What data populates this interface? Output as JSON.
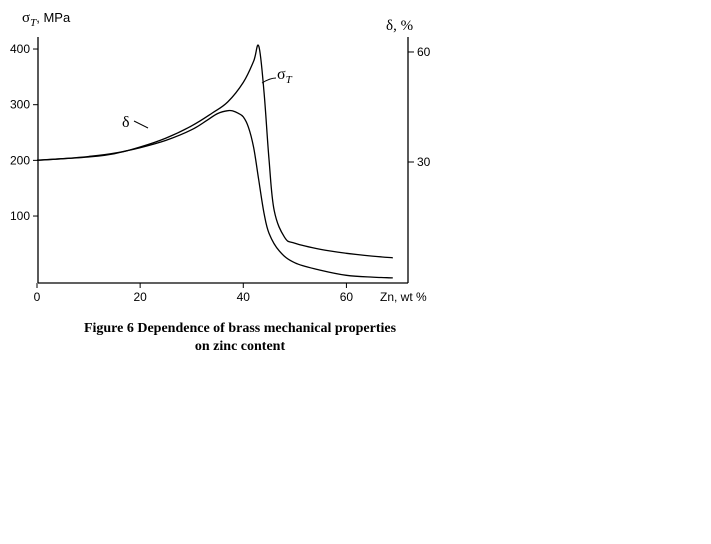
{
  "chart_data": {
    "type": "line",
    "title": "",
    "xlabel": "Zn, wt %",
    "x_ticks": [
      0,
      20,
      40,
      60
    ],
    "xlim": [
      0,
      70
    ],
    "y_left": {
      "symbol": "σ",
      "subscript": "T",
      "unit": ", MPa",
      "ticks": [
        100,
        200,
        300,
        400
      ],
      "ylim": [
        0,
        420
      ]
    },
    "y_right": {
      "label": "δ, %",
      "ticks": [
        30,
        60
      ],
      "ylim": [
        -16,
        64.5
      ]
    },
    "series": [
      {
        "name": "σT",
        "label_symbol": "σ",
        "label_subscript": "T",
        "axis": "left",
        "x": [
          0,
          5,
          10,
          15,
          20,
          25,
          30,
          34,
          37,
          40,
          42,
          43,
          44,
          45,
          46,
          48,
          50,
          55,
          60,
          65,
          69
        ],
        "y": [
          200,
          203,
          206,
          212,
          224,
          240,
          262,
          285,
          305,
          340,
          378,
          405,
          325,
          200,
          110,
          62,
          51,
          40,
          33,
          28,
          25
        ]
      },
      {
        "name": "δ",
        "label_symbol": "δ",
        "axis": "right",
        "x": [
          0,
          5,
          10,
          15,
          20,
          25,
          30,
          33,
          35,
          37,
          38,
          39,
          40,
          41,
          42,
          43,
          44,
          45,
          47,
          50,
          55,
          60,
          65,
          69
        ],
        "y": [
          30.5,
          30.9,
          31.5,
          32.4,
          33.9,
          35.9,
          38.8,
          41.4,
          43.2,
          44.0,
          43.9,
          43.3,
          42.3,
          39.5,
          34.0,
          25.0,
          16.2,
          10.5,
          5.7,
          2.5,
          0.5,
          -0.9,
          -1.4,
          -1.6
        ]
      }
    ]
  },
  "caption": {
    "line1": "Figure 6 Dependence of brass mechanical properties",
    "line2": "on zinc content"
  }
}
